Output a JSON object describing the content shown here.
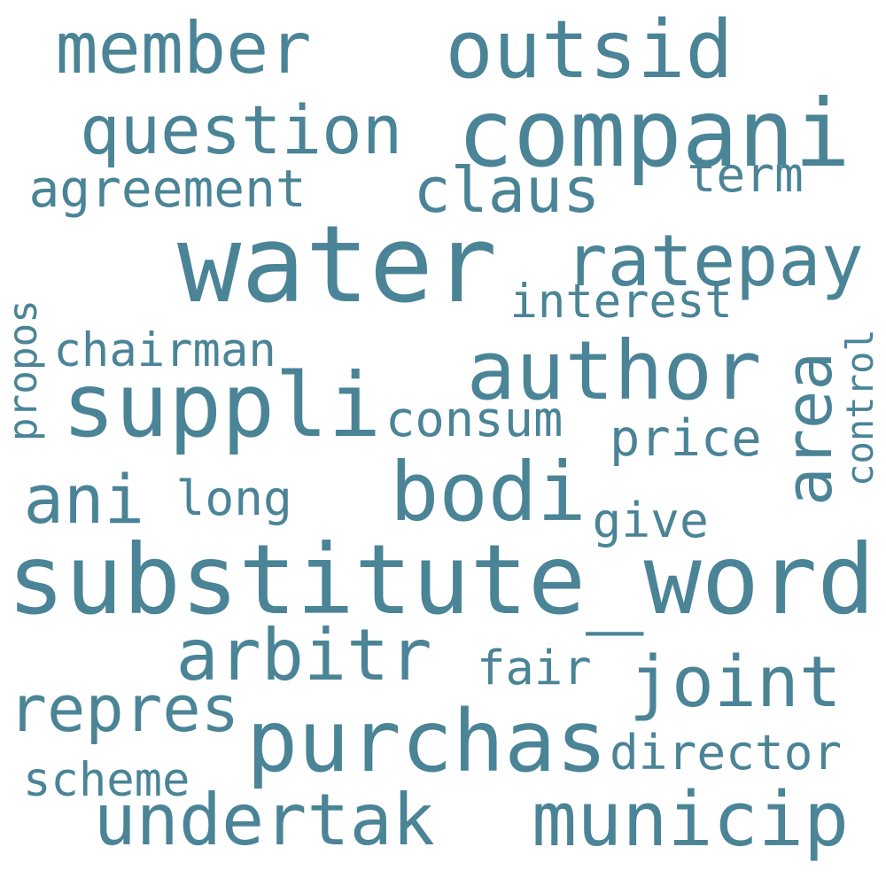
{
  "cloud": {
    "text_color": "#4a8496",
    "background": "#ffffff",
    "words": [
      {
        "text": "water",
        "orientation": "horizontal"
      },
      {
        "text": "substitute_word",
        "orientation": "horizontal"
      },
      {
        "text": "compani",
        "orientation": "horizontal"
      },
      {
        "text": "author",
        "orientation": "horizontal"
      },
      {
        "text": "suppli",
        "orientation": "horizontal"
      },
      {
        "text": "purchas",
        "orientation": "horizontal"
      },
      {
        "text": "outsid",
        "orientation": "horizontal"
      },
      {
        "text": "question",
        "orientation": "horizontal"
      },
      {
        "text": "member",
        "orientation": "horizontal"
      },
      {
        "text": "ratepay",
        "orientation": "horizontal"
      },
      {
        "text": "bodi",
        "orientation": "horizontal"
      },
      {
        "text": "area",
        "orientation": "vertical"
      },
      {
        "text": "arbitr",
        "orientation": "horizontal"
      },
      {
        "text": "undertak",
        "orientation": "horizontal"
      },
      {
        "text": "municip",
        "orientation": "horizontal"
      },
      {
        "text": "joint",
        "orientation": "horizontal"
      },
      {
        "text": "claus",
        "orientation": "horizontal"
      },
      {
        "text": "ani",
        "orientation": "horizontal"
      },
      {
        "text": "repres",
        "orientation": "horizontal"
      },
      {
        "text": "agreement",
        "orientation": "horizontal"
      },
      {
        "text": "interest",
        "orientation": "horizontal"
      },
      {
        "text": "consum",
        "orientation": "horizontal"
      },
      {
        "text": "chairman",
        "orientation": "horizontal"
      },
      {
        "text": "price",
        "orientation": "horizontal"
      },
      {
        "text": "director",
        "orientation": "horizontal"
      },
      {
        "text": "term",
        "orientation": "horizontal"
      },
      {
        "text": "long",
        "orientation": "horizontal"
      },
      {
        "text": "give",
        "orientation": "horizontal"
      },
      {
        "text": "fair",
        "orientation": "horizontal"
      },
      {
        "text": "scheme",
        "orientation": "horizontal"
      },
      {
        "text": "propos",
        "orientation": "vertical"
      },
      {
        "text": "control",
        "orientation": "vertical"
      }
    ]
  }
}
